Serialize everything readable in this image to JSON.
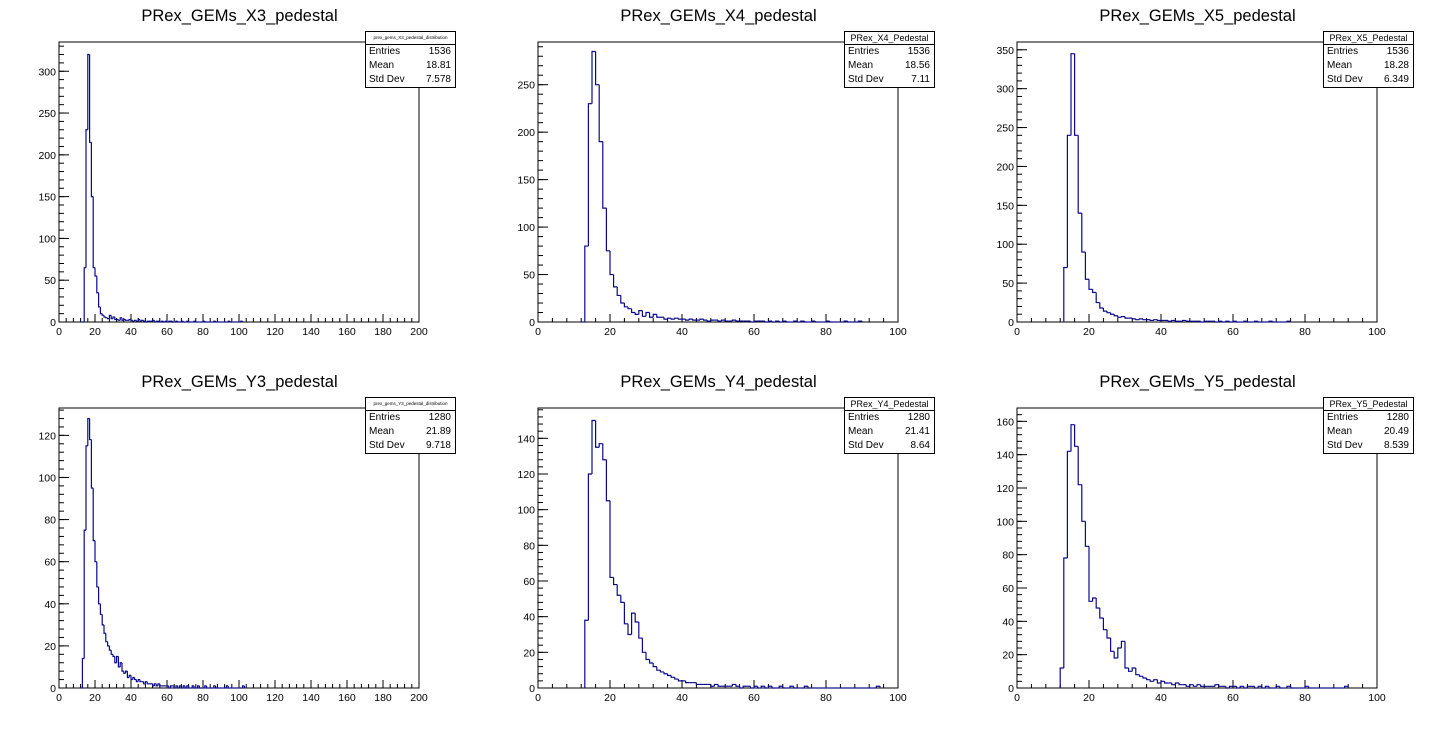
{
  "chart_data": [
    {
      "type": "bar",
      "title": "PRex_GEMs_X3_pedestal",
      "stats": {
        "name": "prex_gems_X3_pedestal_distribution",
        "entries": "1536",
        "mean": "18.81",
        "std_dev": "7.578"
      },
      "xlim": [
        0,
        200
      ],
      "ylim": [
        0,
        335
      ],
      "xticks": [
        0,
        20,
        40,
        60,
        80,
        100,
        120,
        140,
        160,
        180,
        200
      ],
      "yticks": [
        0,
        50,
        100,
        150,
        200,
        250,
        300
      ],
      "bin_start": 12,
      "bin_width": 1,
      "values": [
        0,
        0,
        65,
        230,
        320,
        215,
        150,
        65,
        55,
        35,
        18,
        10,
        8,
        6,
        5,
        4,
        8,
        4,
        6,
        3,
        3,
        2,
        5,
        2,
        3,
        2,
        2,
        3,
        2,
        1,
        2,
        1,
        3,
        1,
        2,
        1,
        0,
        1,
        1,
        1,
        2,
        0,
        1,
        1,
        0,
        1,
        0,
        1,
        0,
        1,
        1,
        0,
        0,
        1,
        0,
        0,
        1,
        0,
        0,
        1,
        0,
        0,
        0,
        1,
        0,
        0,
        0,
        0,
        1,
        0,
        0,
        0,
        0,
        0,
        1,
        0,
        0,
        0,
        0,
        0,
        0,
        0,
        1,
        0,
        0,
        0,
        0,
        0,
        0,
        1
      ]
    },
    {
      "type": "bar",
      "title": "PRex_GEMs_X4_pedestal",
      "stats": {
        "name": "PRex_X4_Pedestal",
        "entries": "1536",
        "mean": "18.56",
        "std_dev": "7.11"
      },
      "xlim": [
        0,
        100
      ],
      "ylim": [
        0,
        295
      ],
      "xticks": [
        0,
        20,
        40,
        60,
        80,
        100
      ],
      "yticks": [
        0,
        50,
        100,
        150,
        200,
        250
      ],
      "bin_start": 12,
      "bin_width": 1,
      "values": [
        0,
        80,
        230,
        285,
        250,
        190,
        120,
        75,
        50,
        37,
        28,
        20,
        16,
        14,
        10,
        8,
        12,
        6,
        10,
        5,
        8,
        5,
        5,
        3,
        4,
        3,
        4,
        3,
        3,
        2,
        3,
        2,
        2,
        3,
        2,
        1,
        2,
        2,
        1,
        2,
        1,
        1,
        2,
        1,
        1,
        1,
        1,
        0,
        1,
        1,
        1,
        0,
        1,
        0,
        1,
        0,
        1,
        0,
        0,
        1,
        0,
        1,
        0,
        0,
        1,
        0,
        0,
        0,
        1,
        0,
        0,
        0,
        0,
        1,
        0,
        0,
        0,
        1
      ]
    },
    {
      "type": "bar",
      "title": "PRex_GEMs_X5_pedestal",
      "stats": {
        "name": "PRex_X5_Pedestal",
        "entries": "1536",
        "mean": "18.28",
        "std_dev": "6.349"
      },
      "xlim": [
        0,
        100
      ],
      "ylim": [
        0,
        360
      ],
      "xticks": [
        0,
        20,
        40,
        60,
        80,
        100
      ],
      "yticks": [
        0,
        50,
        100,
        150,
        200,
        250,
        300,
        350
      ],
      "bin_start": 13,
      "bin_width": 1,
      "values": [
        70,
        240,
        345,
        240,
        140,
        90,
        55,
        42,
        38,
        25,
        18,
        14,
        12,
        10,
        8,
        6,
        7,
        5,
        5,
        4,
        3,
        4,
        3,
        3,
        2,
        3,
        2,
        2,
        2,
        1,
        2,
        1,
        1,
        2,
        1,
        1,
        1,
        1,
        0,
        1,
        1,
        1,
        0,
        1,
        0,
        1,
        0,
        1,
        0,
        0,
        1,
        0,
        0,
        1,
        0,
        0,
        0,
        1,
        0,
        0,
        0,
        0,
        1
      ]
    },
    {
      "type": "bar",
      "title": "PRex_GEMs_Y3_pedestal",
      "stats": {
        "name": "prex_gems_Y3_pedestal_distribution",
        "entries": "1280",
        "mean": "21.89",
        "std_dev": "9.718"
      },
      "xlim": [
        0,
        200
      ],
      "ylim": [
        0,
        133
      ],
      "xticks": [
        0,
        20,
        40,
        60,
        80,
        100,
        120,
        140,
        160,
        180,
        200
      ],
      "yticks": [
        0,
        20,
        40,
        60,
        80,
        100,
        120
      ],
      "bin_start": 12,
      "bin_width": 1,
      "values": [
        0,
        14,
        75,
        115,
        128,
        118,
        95,
        70,
        60,
        48,
        40,
        35,
        30,
        26,
        22,
        20,
        18,
        16,
        15,
        12,
        15,
        10,
        12,
        8,
        7,
        8,
        5,
        6,
        4,
        5,
        4,
        3,
        4,
        3,
        3,
        2,
        3,
        2,
        2,
        2,
        1,
        2,
        1,
        2,
        1,
        1,
        1,
        1,
        1,
        0,
        1,
        1,
        0,
        1,
        0,
        1,
        0,
        1,
        0,
        1,
        0,
        0,
        1,
        0,
        0,
        1,
        0,
        0,
        0,
        1,
        0,
        0,
        0,
        0,
        1,
        0,
        0,
        0,
        0,
        0,
        0,
        1,
        0,
        0,
        0,
        0,
        0,
        0,
        0,
        0,
        1
      ]
    },
    {
      "type": "bar",
      "title": "PRex_GEMs_Y4_pedestal",
      "stats": {
        "name": "PRex_Y4_Pedestal",
        "entries": "1280",
        "mean": "21.41",
        "std_dev": "8.64"
      },
      "xlim": [
        0,
        100
      ],
      "ylim": [
        0,
        157
      ],
      "xticks": [
        0,
        20,
        40,
        60,
        80,
        100
      ],
      "yticks": [
        0,
        20,
        40,
        60,
        80,
        100,
        120,
        140
      ],
      "bin_start": 13,
      "bin_width": 1,
      "values": [
        38,
        120,
        150,
        135,
        137,
        128,
        105,
        62,
        58,
        52,
        48,
        36,
        30,
        42,
        37,
        28,
        20,
        16,
        14,
        12,
        10,
        9,
        8,
        7,
        6,
        5,
        4,
        4,
        3,
        3,
        3,
        2,
        2,
        2,
        2,
        1,
        2,
        1,
        1,
        1,
        1,
        2,
        1,
        0,
        1,
        1,
        0,
        1,
        0,
        1,
        0,
        1,
        0,
        0,
        1,
        0,
        0,
        1,
        0,
        0,
        0,
        1,
        0,
        0,
        0,
        0,
        0,
        0,
        0,
        0,
        0,
        0,
        0,
        0,
        0,
        0,
        0,
        0,
        0,
        0,
        0,
        1
      ]
    },
    {
      "type": "bar",
      "title": "PRex_GEMs_Y5_pedestal",
      "stats": {
        "name": "PRex_Y5_Pedestal",
        "entries": "1280",
        "mean": "20.49",
        "std_dev": "8.539"
      },
      "xlim": [
        0,
        100
      ],
      "ylim": [
        0,
        168
      ],
      "xticks": [
        0,
        20,
        40,
        60,
        80,
        100
      ],
      "yticks": [
        0,
        20,
        40,
        60,
        80,
        100,
        120,
        140,
        160
      ],
      "bin_start": 12,
      "bin_width": 1,
      "values": [
        12,
        78,
        142,
        158,
        145,
        122,
        100,
        85,
        52,
        54,
        48,
        42,
        35,
        30,
        22,
        18,
        24,
        28,
        12,
        10,
        12,
        8,
        7,
        6,
        5,
        4,
        5,
        3,
        4,
        3,
        3,
        2,
        3,
        2,
        2,
        1,
        2,
        1,
        2,
        1,
        1,
        1,
        1,
        2,
        1,
        1,
        0,
        1,
        1,
        0,
        1,
        0,
        1,
        1,
        0,
        1,
        0,
        1,
        0,
        0,
        1,
        0,
        0,
        1,
        0,
        0,
        0,
        0,
        1,
        0,
        0,
        0,
        0,
        0,
        0,
        0,
        0,
        0,
        0,
        1
      ]
    }
  ]
}
